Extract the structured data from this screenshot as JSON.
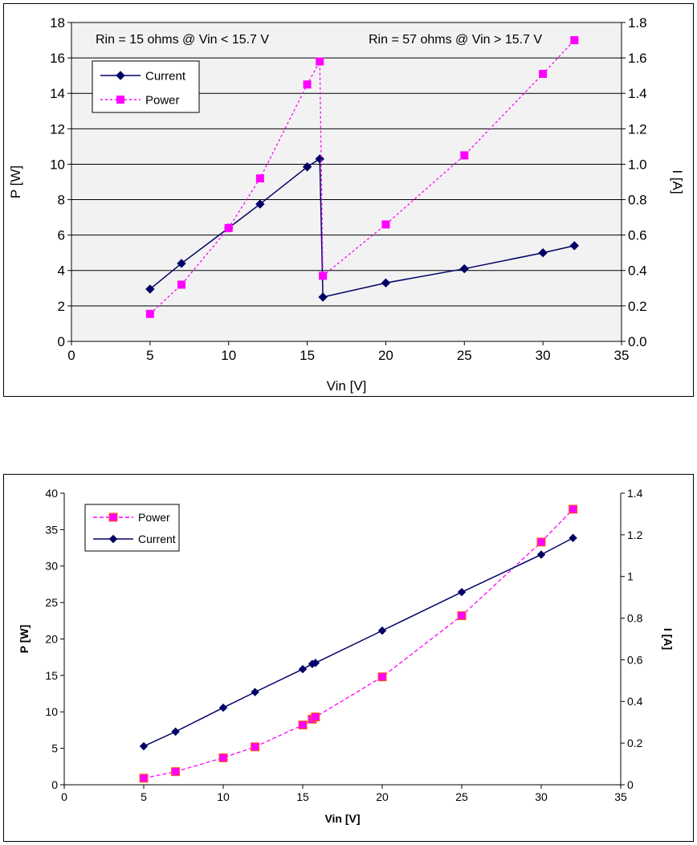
{
  "chart_data": [
    {
      "type": "line",
      "title": "",
      "xlabel": "Vin [V]",
      "ylabel": "P [W]",
      "y2label": "I [A]",
      "xlim": [
        0,
        35
      ],
      "ylim": [
        0,
        18
      ],
      "y2lim": [
        0,
        1.8
      ],
      "xticks": [
        "0",
        "5",
        "10",
        "15",
        "20",
        "25",
        "30",
        "35"
      ],
      "yticks": [
        "0",
        "2",
        "4",
        "6",
        "8",
        "10",
        "12",
        "14",
        "16",
        "18"
      ],
      "y2ticks": [
        "0.0",
        "0.2",
        "0.4",
        "0.6",
        "0.8",
        "1.0",
        "1.2",
        "1.4",
        "1.6",
        "1.8"
      ],
      "grid": "horizontal",
      "legend_position": "top-left",
      "annotations": [
        "Rin = 15 ohms @ Vin < 15.7 V",
        "Rin = 57 ohms @ Vin > 15.7 V"
      ],
      "series": [
        {
          "name": "Current",
          "axis": "right",
          "color": "#000066",
          "marker": "diamond",
          "dash": "solid",
          "x": [
            5,
            7,
            10,
            12,
            15,
            15.8,
            16,
            20,
            25,
            30,
            32
          ],
          "values": [
            0.295,
            0.44,
            0.64,
            0.775,
            0.985,
            1.03,
            0.25,
            0.33,
            0.41,
            0.5,
            0.54
          ]
        },
        {
          "name": "Power",
          "axis": "left",
          "color": "#ff00ff",
          "marker": "square",
          "dash": "dotted",
          "x": [
            5,
            7,
            10,
            12,
            15,
            15.8,
            16,
            20,
            25,
            30,
            32
          ],
          "values": [
            1.55,
            3.2,
            6.4,
            9.2,
            14.5,
            15.8,
            3.7,
            6.6,
            10.5,
            15.1,
            17.0
          ]
        }
      ]
    },
    {
      "type": "line",
      "title": "",
      "xlabel": "Vin [V]",
      "ylabel": "P [W]",
      "y2label": "I [A]",
      "xlim": [
        0,
        35
      ],
      "ylim": [
        0,
        40
      ],
      "y2lim": [
        0,
        1.4
      ],
      "xticks": [
        "0",
        "5",
        "10",
        "15",
        "20",
        "25",
        "30",
        "35"
      ],
      "yticks": [
        "0",
        "5",
        "10",
        "15",
        "20",
        "25",
        "30",
        "35",
        "40"
      ],
      "y2ticks": [
        "0",
        "0.2",
        "0.4",
        "0.6",
        "0.8",
        "1",
        "1.2",
        "1.4"
      ],
      "grid": "none",
      "legend_position": "top-left",
      "series": [
        {
          "name": "Power",
          "axis": "left",
          "color": "#ff00ff",
          "marker": "square",
          "dash": "dashed",
          "x": [
            5,
            7,
            10,
            12,
            15,
            15.6,
            15.8,
            20,
            25,
            30,
            32
          ],
          "values": [
            0.9,
            1.8,
            3.7,
            5.2,
            8.2,
            9.0,
            9.3,
            14.8,
            23.2,
            33.3,
            37.8
          ]
        },
        {
          "name": "Current",
          "axis": "right",
          "color": "#000066",
          "marker": "diamond",
          "dash": "solid",
          "x": [
            5,
            7,
            10,
            12,
            15,
            15.6,
            15.8,
            20,
            25,
            30,
            32
          ],
          "values": [
            0.185,
            0.255,
            0.37,
            0.445,
            0.555,
            0.58,
            0.585,
            0.74,
            0.925,
            1.105,
            1.185
          ]
        }
      ]
    }
  ]
}
